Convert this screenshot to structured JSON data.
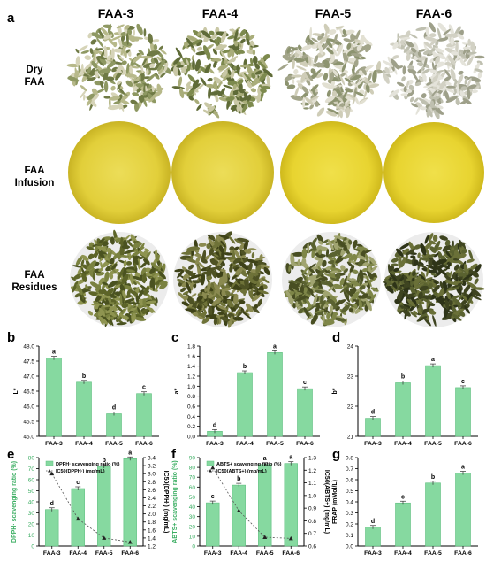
{
  "panels": {
    "a": "a",
    "b": "b",
    "c": "c",
    "d": "d",
    "e": "e",
    "f": "f",
    "g": "g"
  },
  "columns": [
    "FAA-3",
    "FAA-4",
    "FAA-5",
    "FAA-6"
  ],
  "rows": {
    "dry": [
      "Dry",
      "FAA"
    ],
    "infusion": [
      "FAA",
      "Infusion"
    ],
    "residues": [
      "FAA",
      "Residues"
    ]
  },
  "colors": {
    "bar": "#86d9a0",
    "bar_edge": "#5fbf7f",
    "infusion_outer": "#d8c42a",
    "infusion_inner": "#ead84a",
    "dry_leaf": "#9aa070",
    "residue_leaf": "#5f6630"
  },
  "chart_data": [
    {
      "id": "b",
      "type": "bar",
      "categories": [
        "FAA-3",
        "FAA-4",
        "FAA-5",
        "FAA-6"
      ],
      "values": [
        47.6,
        46.8,
        45.75,
        46.42
      ],
      "letters": [
        "a",
        "b",
        "d",
        "c"
      ],
      "ylabel": "L*",
      "ylim": [
        45.0,
        48.0
      ],
      "yticks": [
        "45.0",
        "45.5",
        "46.0",
        "46.5",
        "47.0",
        "47.5",
        "48.0"
      ]
    },
    {
      "id": "c",
      "type": "bar",
      "categories": [
        "FAA-3",
        "FAA-4",
        "FAA-5",
        "FAA-6"
      ],
      "values": [
        0.1,
        1.27,
        1.67,
        0.95
      ],
      "letters": [
        "d",
        "b",
        "a",
        "c"
      ],
      "ylabel": "a*",
      "ylim": [
        0.0,
        1.8
      ],
      "yticks": [
        "0.0",
        "0.2",
        "0.4",
        "0.6",
        "0.8",
        "1.0",
        "1.2",
        "1.4",
        "1.6",
        "1.8"
      ]
    },
    {
      "id": "d",
      "type": "bar",
      "categories": [
        "FAA-3",
        "FAA-4",
        "FAA-5",
        "FAA-6"
      ],
      "values": [
        21.6,
        22.78,
        23.35,
        22.62
      ],
      "letters": [
        "d",
        "b",
        "a",
        "c"
      ],
      "ylabel": "b*",
      "ylim": [
        21,
        24
      ],
      "yticks": [
        "21",
        "22",
        "23",
        "24"
      ]
    },
    {
      "id": "e",
      "type": "bar",
      "categories": [
        "FAA-3",
        "FAA-4",
        "FAA-5",
        "FAA-6"
      ],
      "values": [
        33,
        52,
        72,
        79
      ],
      "letters": [
        "d",
        "c",
        "b",
        "a"
      ],
      "ylabel": "DPPH· scavenging ratio (%)",
      "ylim": [
        0,
        80
      ],
      "yticks": [
        "0",
        "10",
        "20",
        "30",
        "40",
        "50",
        "60",
        "70",
        "80"
      ],
      "y2label": "IC50(DPPH·) (mg/mL)",
      "y2lim": [
        1.2,
        3.4
      ],
      "y2ticks": [
        "1.2",
        "1.4",
        "1.6",
        "1.8",
        "2.0",
        "2.2",
        "2.4",
        "2.6",
        "2.8",
        "3.0",
        "3.2",
        "3.4"
      ],
      "line_values": [
        3.0,
        1.88,
        1.4,
        1.3
      ],
      "legend": [
        "DPPH· scavenging ratio (%)",
        "IC50(DPPH·) (mg/mL)"
      ]
    },
    {
      "id": "f",
      "type": "bar",
      "categories": [
        "FAA-3",
        "FAA-4",
        "FAA-5",
        "FAA-6"
      ],
      "values": [
        44,
        62,
        83,
        84
      ],
      "letters": [
        "c",
        "b",
        "a",
        "a"
      ],
      "ylabel": "ABTS+ scavenging ratio (%)",
      "ylim": [
        0,
        90
      ],
      "yticks": [
        "0",
        "10",
        "20",
        "30",
        "40",
        "50",
        "60",
        "70",
        "80",
        "90"
      ],
      "y2label": "IC50(ABTS+) (mg/mL)",
      "y2lim": [
        0.6,
        1.3
      ],
      "y2ticks": [
        "0.6",
        "0.7",
        "0.8",
        "0.9",
        "1.0",
        "1.1",
        "1.2",
        "1.3"
      ],
      "line_values": [
        1.22,
        0.88,
        0.67,
        0.66
      ],
      "legend": [
        "ABTS+ scavenging ratio (%)",
        "IC50(ABTS+) (mg/mL)"
      ]
    },
    {
      "id": "g",
      "type": "bar",
      "categories": [
        "FAA-3",
        "FAA-4",
        "FAA-5",
        "FAA-6"
      ],
      "values": [
        0.17,
        0.39,
        0.57,
        0.66
      ],
      "letters": [
        "d",
        "c",
        "b",
        "a"
      ],
      "ylabel": "FRAP (mMol/L)",
      "ylim": [
        0.0,
        0.8
      ],
      "yticks": [
        "0.0",
        "0.1",
        "0.2",
        "0.3",
        "0.4",
        "0.5",
        "0.6",
        "0.7",
        "0.8"
      ]
    }
  ]
}
